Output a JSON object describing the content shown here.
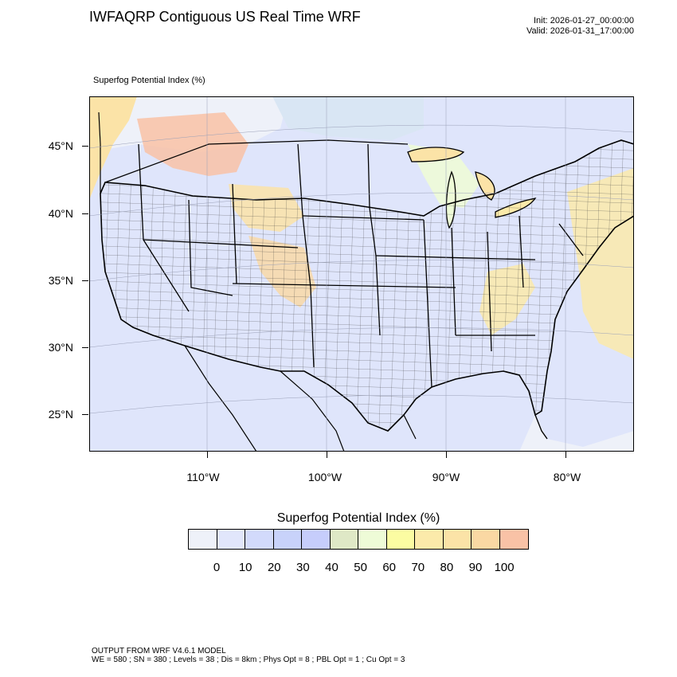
{
  "header": {
    "title": "IWFAQRP Contiguous US Real Time WRF",
    "init": "Init: 2026-01-27_00:00:00",
    "valid": "Valid: 2026-01-31_17:00:00"
  },
  "map": {
    "field_label": "Superfog Potential Index   (%)",
    "background_color": "#dfe5fb",
    "lat_labels": [
      "45°N",
      "40°N",
      "35°N",
      "30°N",
      "25°N"
    ],
    "lon_labels": [
      "110°W",
      "100°W",
      "90°W",
      "80°W"
    ]
  },
  "legend": {
    "title": "Superfog Potential Index  (%)",
    "colors": [
      "#eef1f9",
      "#e1e6fb",
      "#d2dafb",
      "#c8d2fa",
      "#c6cdfb",
      "#dfe8c6",
      "#eefbd7",
      "#fbfca2",
      "#fbeaaa",
      "#fbe3a7",
      "#fad8a3",
      "#f9c2a6"
    ],
    "ticks": [
      "0",
      "10",
      "20",
      "30",
      "40",
      "50",
      "60",
      "70",
      "80",
      "90",
      "100"
    ]
  },
  "footer": {
    "line1": "OUTPUT FROM WRF V4.6.1 MODEL",
    "line2": "WE = 580 ; SN = 380 ; Levels = 38 ; Dis = 8km ; Phys Opt = 8 ; PBL Opt = 1 ; Cu Opt = 3"
  }
}
